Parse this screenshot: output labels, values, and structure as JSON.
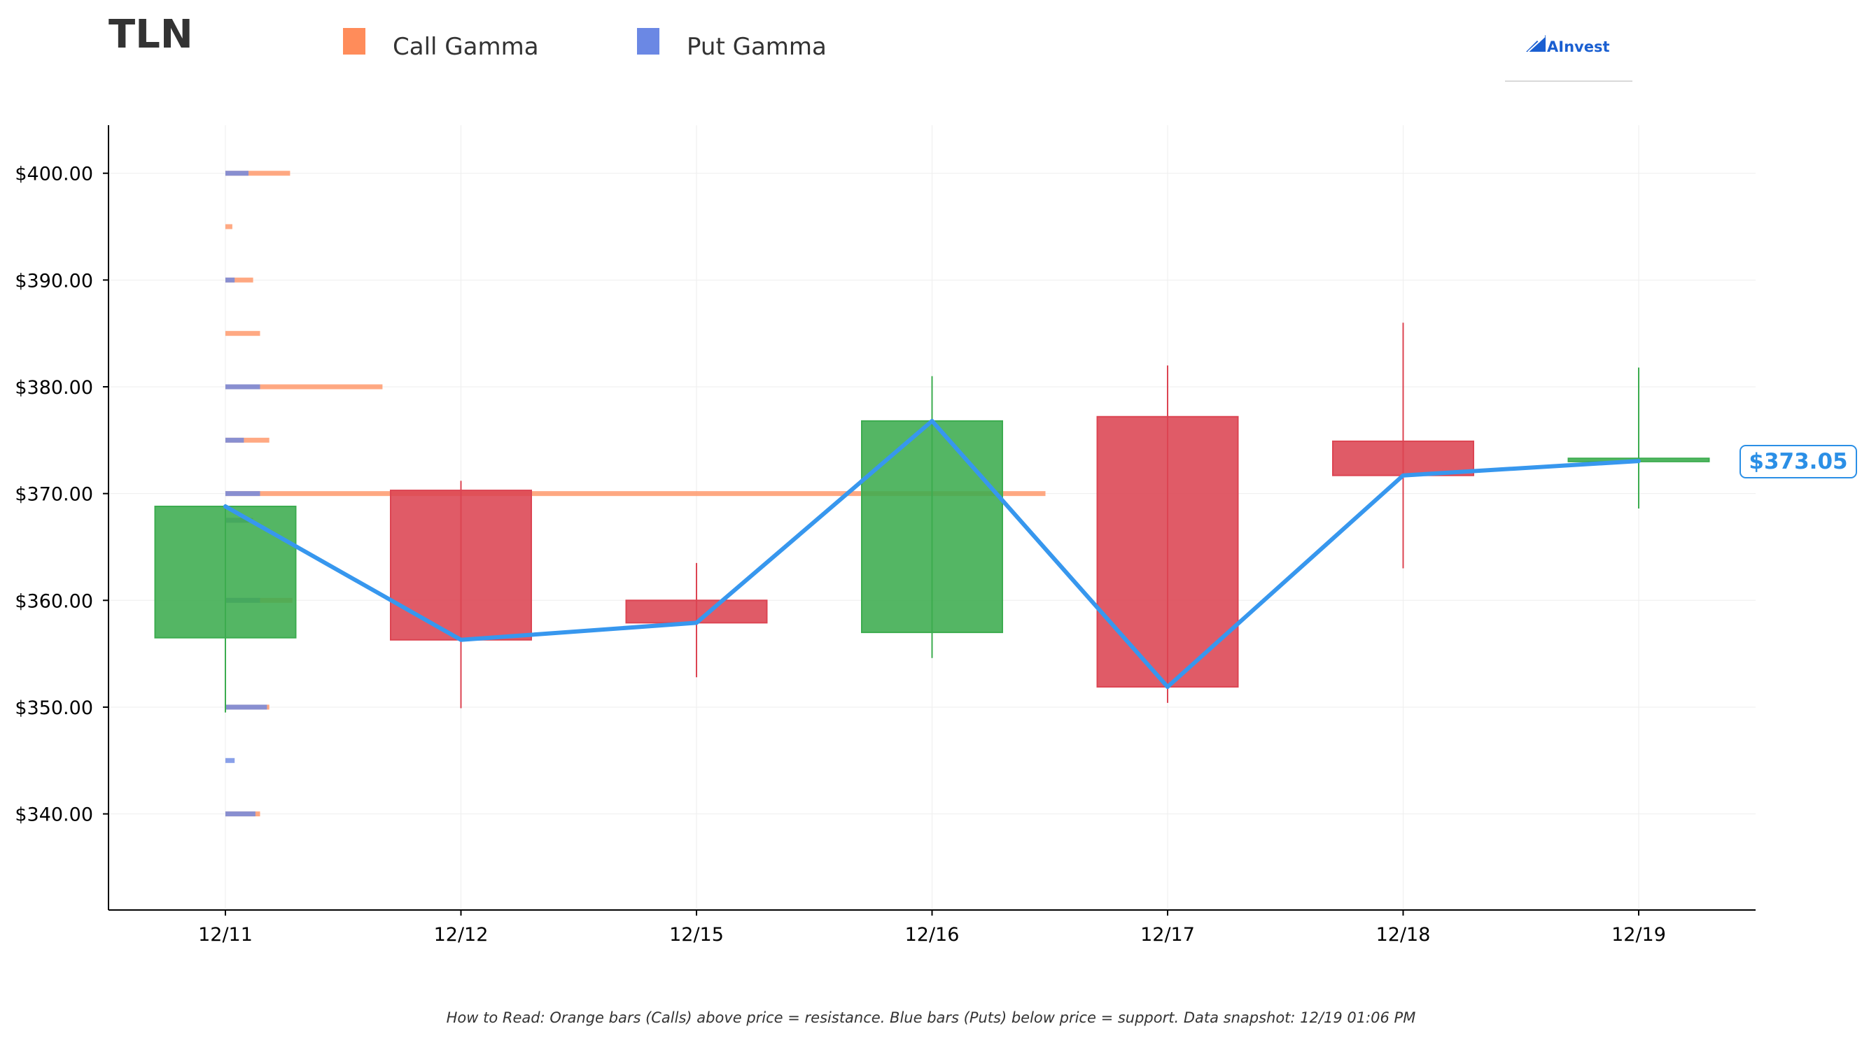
{
  "title": "TLN",
  "legend": [
    {
      "label": "Call Gamma",
      "color": "#ff8c5a"
    },
    {
      "label": "Put Gamma",
      "color": "#6b88e4"
    }
  ],
  "brand": {
    "name": "AInvest",
    "icon": "ainvest-logo-icon"
  },
  "footnote": "How to Read: Orange bars (Calls) above price = resistance. Blue bars (Puts) below price = support. Data snapshot: 12/19 01:06 PM",
  "current_price_label": "$373.05",
  "colors": {
    "up": "#3cac4f",
    "down": "#dc4452",
    "price_line": "#3797ee",
    "call": "#ff8c5a",
    "put": "#6b88e4"
  },
  "chart_data": {
    "type": "candlestick",
    "categories": [
      "12/11",
      "12/12",
      "12/15",
      "12/16",
      "12/17",
      "12/18",
      "12/19"
    ],
    "ohlc": [
      {
        "date": "12/11",
        "open": 356.5,
        "high": 369.0,
        "low": 349.5,
        "close": 368.8
      },
      {
        "date": "12/12",
        "open": 370.3,
        "high": 371.2,
        "low": 349.9,
        "close": 356.3
      },
      {
        "date": "12/15",
        "open": 360.0,
        "high": 363.5,
        "low": 352.8,
        "close": 357.9
      },
      {
        "date": "12/16",
        "open": 357.0,
        "high": 381.0,
        "low": 354.6,
        "close": 376.8
      },
      {
        "date": "12/17",
        "open": 377.2,
        "high": 382.0,
        "low": 350.4,
        "close": 351.9
      },
      {
        "date": "12/18",
        "open": 374.9,
        "high": 386.0,
        "low": 363.0,
        "close": 371.7
      },
      {
        "date": "12/19",
        "open": 373.0,
        "high": 381.8,
        "low": 368.6,
        "close": 373.3
      }
    ],
    "price_line": [
      368.8,
      356.3,
      357.9,
      376.8,
      351.9,
      371.7,
      373.05
    ],
    "current_price": 373.05,
    "gamma_strikes": [
      {
        "strike": 400,
        "call": 0.28,
        "put": 0.1
      },
      {
        "strike": 395,
        "call": 0.03,
        "put": 0.0
      },
      {
        "strike": 390,
        "call": 0.12,
        "put": 0.04
      },
      {
        "strike": 385,
        "call": 0.15,
        "put": 0.0
      },
      {
        "strike": 380,
        "call": 0.68,
        "put": 0.15
      },
      {
        "strike": 375,
        "call": 0.19,
        "put": 0.08
      },
      {
        "strike": 370,
        "call": 3.55,
        "put": 0.15
      },
      {
        "strike": 367.5,
        "call": 0.12,
        "put": 0.1
      },
      {
        "strike": 360,
        "call": 0.29,
        "put": 0.15
      },
      {
        "strike": 350,
        "call": 0.19,
        "put": 0.18
      },
      {
        "strike": 345,
        "call": 0.0,
        "put": 0.04
      },
      {
        "strike": 340,
        "call": 0.15,
        "put": 0.13
      }
    ],
    "y_ticks": [
      "$340.00",
      "$350.00",
      "$360.00",
      "$370.00",
      "$380.00",
      "$390.00",
      "$400.00"
    ],
    "ylim": [
      331,
      404.5
    ],
    "grid": true,
    "legend_position": "top"
  }
}
